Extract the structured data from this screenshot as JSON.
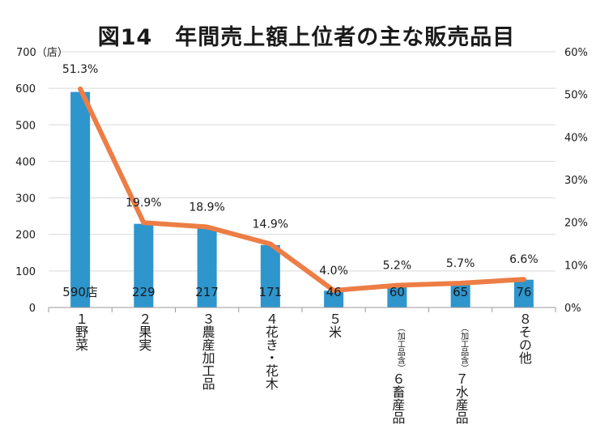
{
  "title": "図14　年間売上額上位者の主な販売品目",
  "colors": {
    "bar": "#2e95cd",
    "line": "#ed7d45",
    "grid": "#d9d9d9",
    "axis": "#9a9a9a"
  },
  "chart_data": {
    "type": "bar",
    "left_axis": {
      "min": 0,
      "max": 700,
      "ticks": [
        "0",
        "100",
        "200",
        "300",
        "400",
        "500",
        "600",
        "700"
      ],
      "top_tick_label": "700（店）"
    },
    "right_axis": {
      "min": 0,
      "max": 60,
      "ticks": [
        "0%",
        "10%",
        "20%",
        "30%",
        "40%",
        "50%",
        "60%"
      ]
    },
    "grid": true,
    "categories": [
      {
        "main": "１\n野菜",
        "sub": ""
      },
      {
        "main": "２\n果実",
        "sub": ""
      },
      {
        "main": "３\n農産加工品",
        "sub": ""
      },
      {
        "main": "４\n花き・花木",
        "sub": ""
      },
      {
        "main": "５\n米",
        "sub": ""
      },
      {
        "main": "６\n畜産品",
        "sub": "（加工品含）"
      },
      {
        "main": "７\n水産品",
        "sub": "（加工品含）"
      },
      {
        "main": "８\nその他",
        "sub": ""
      }
    ],
    "series": [
      {
        "type": "bar",
        "axis": "left",
        "values": [
          590,
          229,
          217,
          171,
          46,
          60,
          65,
          76
        ],
        "labels": [
          "590店",
          "229",
          "217",
          "171",
          "46",
          "60",
          "65",
          "76"
        ]
      },
      {
        "type": "line",
        "axis": "right",
        "values": [
          51.3,
          19.9,
          18.9,
          14.9,
          4.0,
          5.2,
          5.7,
          6.6
        ],
        "labels": [
          "51.3%",
          "19.9%",
          "18.9%",
          "14.9%",
          "4.0%",
          "5.2%",
          "5.7%",
          "6.6%"
        ]
      }
    ]
  }
}
